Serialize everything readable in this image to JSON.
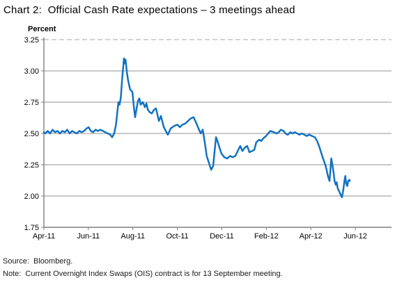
{
  "title": "Chart 2:  Official Cash Rate expectations – 3 meetings ahead",
  "footer": {
    "source": "Source:  Bloomberg.",
    "note": "Note:  Current Overnight Index Swaps (OIS) contract is for 13 September meeting."
  },
  "chart_data": {
    "type": "line",
    "title": "Official Cash Rate expectations – 3 meetings ahead",
    "ylabel": "Percent",
    "ylim": [
      1.75,
      3.25
    ],
    "xlim": [
      0,
      15.63
    ],
    "x_unit": "months since Apr-2011",
    "grid": "horizontal",
    "legend": "none",
    "yticks": [
      "3.25",
      "3.00",
      "2.75",
      "2.50",
      "2.25",
      "2.00",
      "1.75"
    ],
    "xticks": [
      {
        "t": 0,
        "label": "Apr-11"
      },
      {
        "t": 2,
        "label": "Jun-11"
      },
      {
        "t": 4,
        "label": "Aug-11"
      },
      {
        "t": 6,
        "label": "Oct-11"
      },
      {
        "t": 8,
        "label": "Dec-11"
      },
      {
        "t": 10,
        "label": "Feb-12"
      },
      {
        "t": 12,
        "label": "Apr-12"
      },
      {
        "t": 14,
        "label": "Jun-12"
      }
    ],
    "colors": {
      "line": "#1272C2",
      "gridline": "#909090",
      "gridline_dashed": "#a6a6a6",
      "axis": "#7f7f7f",
      "text": "#000000"
    },
    "series": [
      {
        "name": "Official Cash Rate expectations – 3 meetings ahead",
        "points": [
          [
            0.0,
            2.51
          ],
          [
            0.06,
            2.5
          ],
          [
            0.17,
            2.52
          ],
          [
            0.28,
            2.5
          ],
          [
            0.39,
            2.53
          ],
          [
            0.5,
            2.51
          ],
          [
            0.61,
            2.52
          ],
          [
            0.72,
            2.5
          ],
          [
            0.83,
            2.52
          ],
          [
            0.94,
            2.51
          ],
          [
            1.05,
            2.53
          ],
          [
            1.16,
            2.5
          ],
          [
            1.27,
            2.52
          ],
          [
            1.37,
            2.51
          ],
          [
            1.48,
            2.5
          ],
          [
            1.59,
            2.52
          ],
          [
            1.7,
            2.51
          ],
          [
            1.81,
            2.52
          ],
          [
            1.92,
            2.54
          ],
          [
            2.01,
            2.55
          ],
          [
            2.11,
            2.52
          ],
          [
            2.21,
            2.51
          ],
          [
            2.32,
            2.53
          ],
          [
            2.43,
            2.52
          ],
          [
            2.54,
            2.53
          ],
          [
            2.65,
            2.52
          ],
          [
            2.76,
            2.51
          ],
          [
            2.87,
            2.5
          ],
          [
            2.98,
            2.49
          ],
          [
            3.07,
            2.47
          ],
          [
            3.16,
            2.5
          ],
          [
            3.24,
            2.57
          ],
          [
            3.29,
            2.65
          ],
          [
            3.35,
            2.75
          ],
          [
            3.4,
            2.73
          ],
          [
            3.46,
            2.79
          ],
          [
            3.51,
            2.92
          ],
          [
            3.57,
            3.04
          ],
          [
            3.6,
            3.1
          ],
          [
            3.64,
            3.06
          ],
          [
            3.67,
            3.09
          ],
          [
            3.73,
            2.99
          ],
          [
            3.78,
            2.93
          ],
          [
            3.84,
            2.88
          ],
          [
            3.88,
            2.85
          ],
          [
            3.94,
            2.84
          ],
          [
            3.98,
            2.83
          ],
          [
            4.04,
            2.72
          ],
          [
            4.1,
            2.63
          ],
          [
            4.17,
            2.7
          ],
          [
            4.23,
            2.76
          ],
          [
            4.29,
            2.78
          ],
          [
            4.35,
            2.73
          ],
          [
            4.45,
            2.75
          ],
          [
            4.54,
            2.71
          ],
          [
            4.61,
            2.74
          ],
          [
            4.67,
            2.69
          ],
          [
            4.76,
            2.67
          ],
          [
            4.85,
            2.66
          ],
          [
            4.95,
            2.69
          ],
          [
            5.04,
            2.7
          ],
          [
            5.17,
            2.6
          ],
          [
            5.26,
            2.64
          ],
          [
            5.39,
            2.55
          ],
          [
            5.48,
            2.52
          ],
          [
            5.57,
            2.49
          ],
          [
            5.7,
            2.54
          ],
          [
            5.85,
            2.56
          ],
          [
            6.01,
            2.57
          ],
          [
            6.11,
            2.55
          ],
          [
            6.23,
            2.57
          ],
          [
            6.36,
            2.58
          ],
          [
            6.48,
            2.6
          ],
          [
            6.6,
            2.62
          ],
          [
            6.73,
            2.63
          ],
          [
            6.86,
            2.58
          ],
          [
            6.95,
            2.54
          ],
          [
            7.05,
            2.5
          ],
          [
            7.14,
            2.53
          ],
          [
            7.23,
            2.43
          ],
          [
            7.32,
            2.32
          ],
          [
            7.43,
            2.26
          ],
          [
            7.52,
            2.21
          ],
          [
            7.61,
            2.24
          ],
          [
            7.67,
            2.35
          ],
          [
            7.74,
            2.47
          ],
          [
            7.8,
            2.44
          ],
          [
            7.89,
            2.39
          ],
          [
            7.98,
            2.34
          ],
          [
            8.11,
            2.31
          ],
          [
            8.24,
            2.3
          ],
          [
            8.37,
            2.32
          ],
          [
            8.48,
            2.31
          ],
          [
            8.61,
            2.32
          ],
          [
            8.74,
            2.37
          ],
          [
            8.83,
            2.4
          ],
          [
            8.92,
            2.36
          ],
          [
            9.05,
            2.39
          ],
          [
            9.14,
            2.4
          ],
          [
            9.24,
            2.35
          ],
          [
            9.36,
            2.36
          ],
          [
            9.46,
            2.37
          ],
          [
            9.55,
            2.43
          ],
          [
            9.68,
            2.45
          ],
          [
            9.77,
            2.44
          ],
          [
            9.86,
            2.46
          ],
          [
            9.99,
            2.48
          ],
          [
            10.08,
            2.5
          ],
          [
            10.18,
            2.52
          ],
          [
            10.34,
            2.51
          ],
          [
            10.46,
            2.5
          ],
          [
            10.56,
            2.51
          ],
          [
            10.65,
            2.53
          ],
          [
            10.77,
            2.52
          ],
          [
            10.86,
            2.5
          ],
          [
            10.96,
            2.49
          ],
          [
            11.08,
            2.51
          ],
          [
            11.18,
            2.5
          ],
          [
            11.28,
            2.51
          ],
          [
            11.39,
            2.5
          ],
          [
            11.49,
            2.49
          ],
          [
            11.59,
            2.5
          ],
          [
            11.71,
            2.49
          ],
          [
            11.81,
            2.48
          ],
          [
            11.93,
            2.49
          ],
          [
            12.05,
            2.48
          ],
          [
            12.18,
            2.47
          ],
          [
            12.28,
            2.44
          ],
          [
            12.37,
            2.4
          ],
          [
            12.46,
            2.35
          ],
          [
            12.55,
            2.3
          ],
          [
            12.65,
            2.25
          ],
          [
            12.71,
            2.21
          ],
          [
            12.77,
            2.16
          ],
          [
            12.84,
            2.12
          ],
          [
            12.88,
            2.21
          ],
          [
            12.92,
            2.3
          ],
          [
            12.96,
            2.26
          ],
          [
            13.03,
            2.18
          ],
          [
            13.07,
            2.12
          ],
          [
            13.12,
            2.09
          ],
          [
            13.16,
            2.11
          ],
          [
            13.21,
            2.06
          ],
          [
            13.27,
            2.04
          ],
          [
            13.34,
            2.01
          ],
          [
            13.4,
            1.99
          ],
          [
            13.46,
            2.05
          ],
          [
            13.51,
            2.12
          ],
          [
            13.55,
            2.16
          ],
          [
            13.59,
            2.1
          ],
          [
            13.64,
            2.08
          ],
          [
            13.68,
            2.12
          ],
          [
            13.73,
            2.13
          ],
          [
            13.75,
            2.12
          ]
        ]
      }
    ]
  }
}
